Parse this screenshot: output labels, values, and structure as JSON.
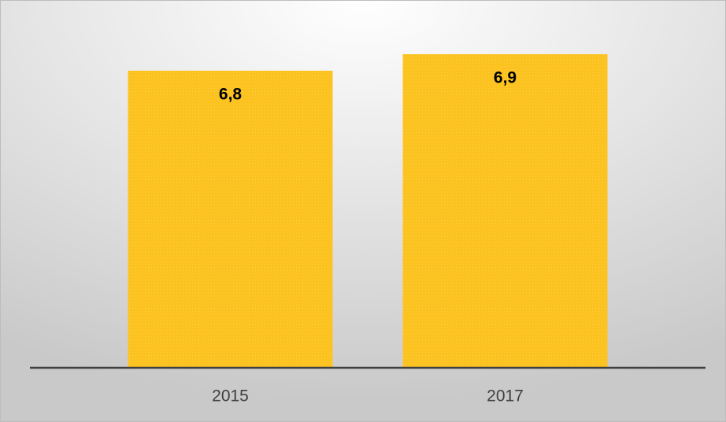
{
  "chart_data": {
    "type": "bar",
    "categories": [
      "2015",
      "2017"
    ],
    "values": [
      6.8,
      6.9
    ],
    "value_labels": [
      "6,8",
      "6,9"
    ],
    "color": "#fcc320",
    "ylim": [
      5,
      7
    ]
  }
}
